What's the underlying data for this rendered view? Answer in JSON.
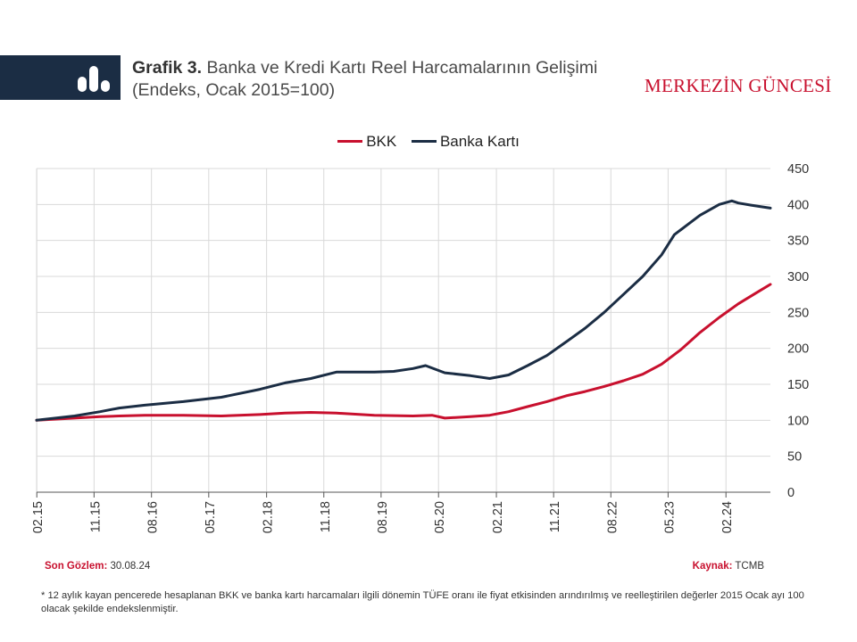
{
  "header": {
    "title_bold": "Grafik 3.",
    "title_rest": " Banka ve Kredi Kartı Reel Harcamalarının Gelişimi (Endeks, Ocak 2015=100)",
    "brand": "MERKEZİN GÜNCESİ",
    "logo_icon": "bar-chart-icon"
  },
  "colors": {
    "bkk": "#c8102e",
    "banka": "#1b2d44",
    "grid": "#d9d9d9",
    "header_bar": "#1b2d44"
  },
  "chart_data": {
    "type": "line",
    "title": "Grafik 3. Banka ve Kredi Kartı Reel Harcamalarının Gelişimi (Endeks, Ocak 2015=100)",
    "x_tick_labels": [
      "02.15",
      "11.15",
      "08.16",
      "05.17",
      "02.18",
      "11.18",
      "08.19",
      "05.20",
      "02.21",
      "11.21",
      "08.22",
      "05.23",
      "02.24"
    ],
    "x_range": [
      "2015-01-31",
      "2024-08-31"
    ],
    "ylim": [
      0,
      450
    ],
    "y_ticks": [
      0,
      50,
      100,
      150,
      200,
      250,
      300,
      350,
      400,
      450
    ],
    "y_axis_side": "right",
    "grid": true,
    "legend_position": "top-center",
    "series": [
      {
        "name": "BKK",
        "color": "#c8102e",
        "points": [
          [
            "2015-01-31",
            100
          ],
          [
            "2015-07-31",
            103
          ],
          [
            "2015-11-30",
            105
          ],
          [
            "2016-02-29",
            106
          ],
          [
            "2016-06-30",
            107
          ],
          [
            "2016-12-31",
            107
          ],
          [
            "2017-06-30",
            106
          ],
          [
            "2017-12-31",
            108
          ],
          [
            "2018-04-30",
            110
          ],
          [
            "2018-08-31",
            111
          ],
          [
            "2018-12-31",
            110
          ],
          [
            "2019-06-30",
            107
          ],
          [
            "2019-12-31",
            106
          ],
          [
            "2020-03-31",
            107
          ],
          [
            "2020-05-31",
            103
          ],
          [
            "2020-09-30",
            105
          ],
          [
            "2020-12-31",
            107
          ],
          [
            "2021-03-31",
            112
          ],
          [
            "2021-06-30",
            119
          ],
          [
            "2021-09-30",
            126
          ],
          [
            "2021-12-31",
            134
          ],
          [
            "2022-03-31",
            140
          ],
          [
            "2022-06-30",
            147
          ],
          [
            "2022-09-30",
            155
          ],
          [
            "2022-12-31",
            164
          ],
          [
            "2023-03-31",
            178
          ],
          [
            "2023-06-30",
            198
          ],
          [
            "2023-09-30",
            222
          ],
          [
            "2023-12-31",
            243
          ],
          [
            "2024-03-31",
            262
          ],
          [
            "2024-06-30",
            278
          ],
          [
            "2024-08-31",
            289
          ]
        ]
      },
      {
        "name": "Banka Kartı",
        "color": "#1b2d44",
        "points": [
          [
            "2015-01-31",
            100
          ],
          [
            "2015-07-31",
            106
          ],
          [
            "2015-11-30",
            112
          ],
          [
            "2016-02-29",
            117
          ],
          [
            "2016-06-30",
            121
          ],
          [
            "2016-12-31",
            126
          ],
          [
            "2017-06-30",
            132
          ],
          [
            "2017-12-31",
            143
          ],
          [
            "2018-04-30",
            152
          ],
          [
            "2018-08-31",
            158
          ],
          [
            "2018-12-31",
            167
          ],
          [
            "2019-06-30",
            167
          ],
          [
            "2019-09-30",
            168
          ],
          [
            "2019-12-31",
            172
          ],
          [
            "2020-02-29",
            176
          ],
          [
            "2020-05-31",
            166
          ],
          [
            "2020-09-30",
            162
          ],
          [
            "2020-12-31",
            158
          ],
          [
            "2021-03-31",
            163
          ],
          [
            "2021-06-30",
            176
          ],
          [
            "2021-09-30",
            190
          ],
          [
            "2021-12-31",
            209
          ],
          [
            "2022-03-31",
            228
          ],
          [
            "2022-06-30",
            250
          ],
          [
            "2022-09-30",
            275
          ],
          [
            "2022-12-31",
            300
          ],
          [
            "2023-03-31",
            330
          ],
          [
            "2023-05-31",
            358
          ],
          [
            "2023-09-30",
            385
          ],
          [
            "2023-12-31",
            400
          ],
          [
            "2024-02-29",
            405
          ],
          [
            "2024-03-31",
            402
          ],
          [
            "2024-05-31",
            399
          ],
          [
            "2024-08-31",
            395
          ]
        ]
      }
    ]
  },
  "footer": {
    "son_gozlem_label": "Son Gözlem:",
    "son_gozlem_value": " 30.08.24",
    "kaynak_label": "Kaynak:",
    "kaynak_value": " TCMB",
    "note": "* 12 aylık kayan pencerede hesaplanan BKK ve banka kartı harcamaları ilgili dönemin TÜFE oranı ile fiyat etkisinden arındırılmış ve reelleştirilen değerler 2015 Ocak ayı 100 olacak şekilde endekslenmiştir."
  }
}
